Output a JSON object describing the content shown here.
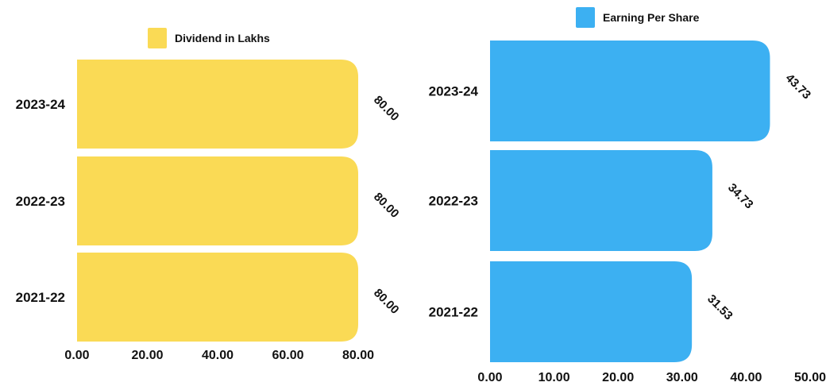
{
  "chart_data": [
    {
      "type": "bar",
      "orientation": "horizontal",
      "categories": [
        "2023-24",
        "2022-23",
        "2021-22"
      ],
      "series": [
        {
          "name": "Dividend in Lakhs",
          "values": [
            80.0,
            80.0,
            80.0
          ],
          "color": "#FADA55"
        }
      ],
      "data_labels": [
        "80.00",
        "80.00",
        "80.00"
      ],
      "xlim": [
        0,
        80
      ],
      "xticks": [
        "0.00",
        "20.00",
        "40.00",
        "60.00",
        "80.00"
      ],
      "legend_position": "top",
      "grid": false
    },
    {
      "type": "bar",
      "orientation": "horizontal",
      "categories": [
        "2023-24",
        "2022-23",
        "2021-22"
      ],
      "series": [
        {
          "name": "Earning Per Share",
          "values": [
            43.73,
            34.73,
            31.53
          ],
          "color": "#3CB0F2"
        }
      ],
      "data_labels": [
        "43.73",
        "34.73",
        "31.53"
      ],
      "xlim": [
        0,
        50
      ],
      "xticks": [
        "0.00",
        "10.00",
        "20.00",
        "30.00",
        "40.00",
        "50.00"
      ],
      "legend_position": "top",
      "grid": false
    }
  ]
}
